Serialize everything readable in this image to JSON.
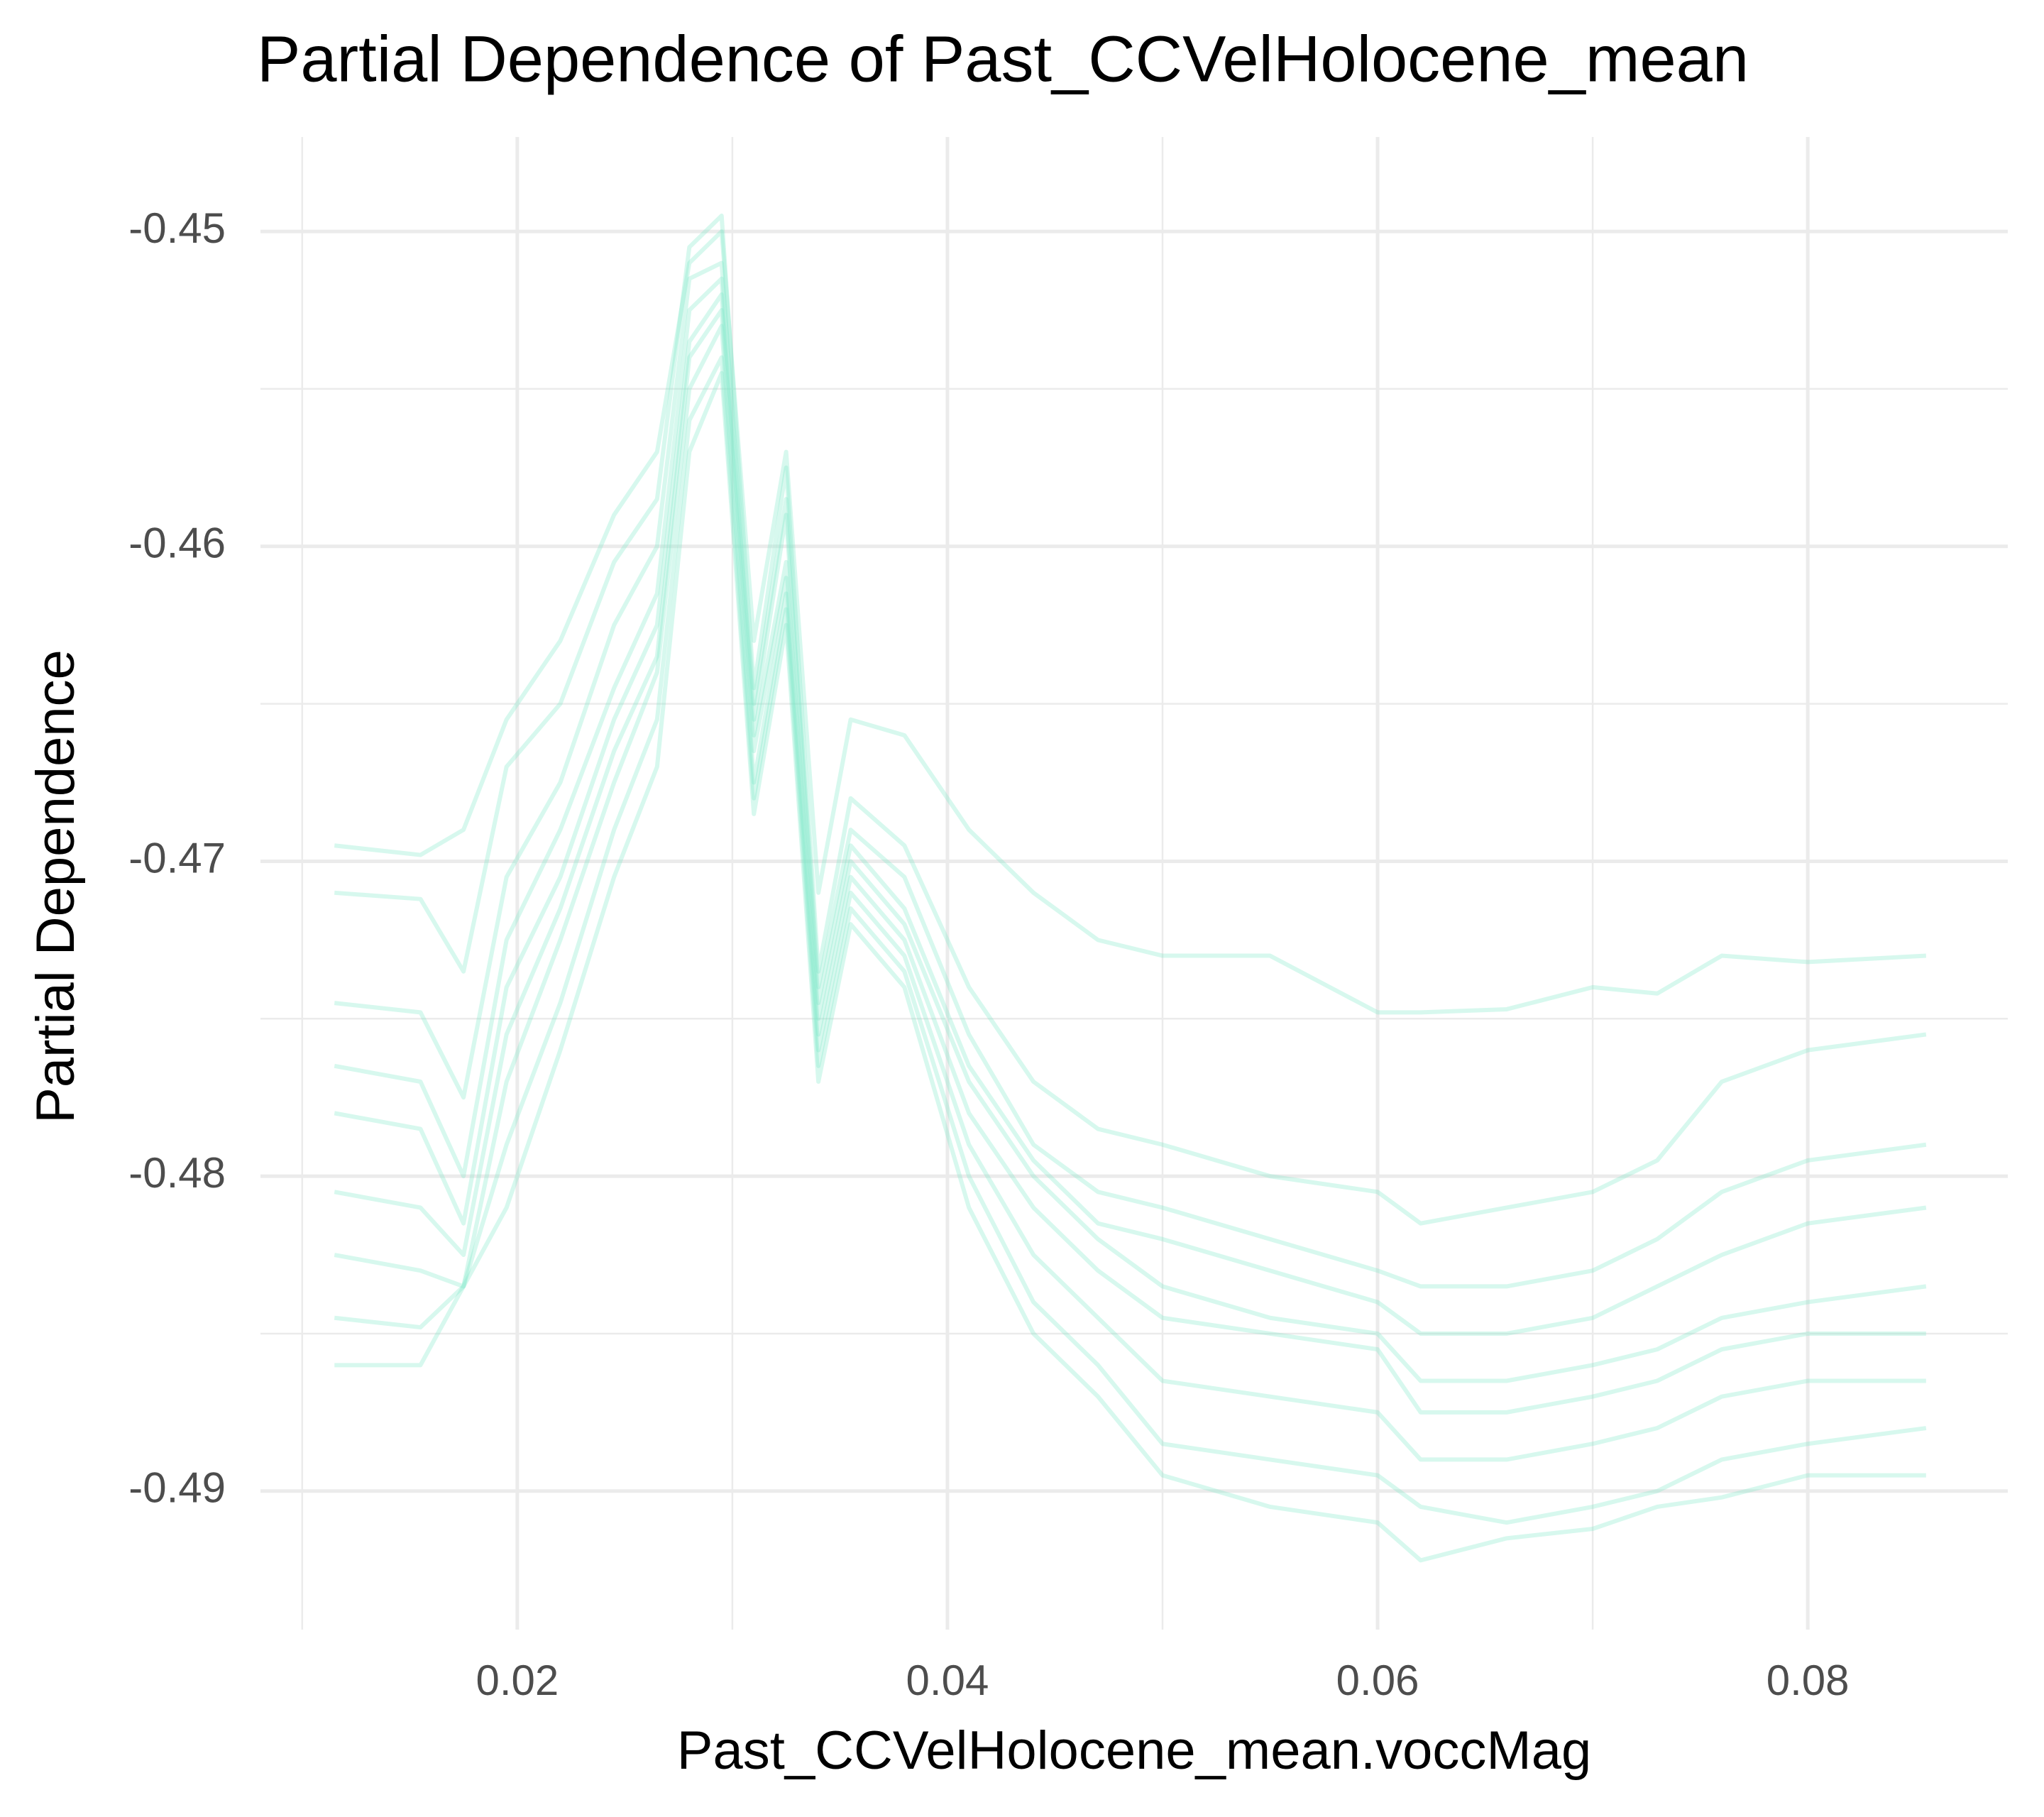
{
  "chart_data": {
    "type": "line",
    "title": "Partial Dependence of Past_CCVelHolocene_mean",
    "x_label": "Past_CCVelHolocene_mean.voccMag",
    "y_label": "Partial Dependence",
    "x": [
      0.0115,
      0.0155,
      0.0175,
      0.0195,
      0.022,
      0.0245,
      0.0265,
      0.028,
      0.0295,
      0.031,
      0.0325,
      0.034,
      0.0355,
      0.038,
      0.041,
      0.044,
      0.047,
      0.05,
      0.055,
      0.06,
      0.062,
      0.066,
      0.07,
      0.073,
      0.076,
      0.08,
      0.0855
    ],
    "series": [
      {
        "color": "#7ae8c7",
        "values": [
          -0.4695,
          -0.4698,
          -0.469,
          -0.4655,
          -0.463,
          -0.459,
          -0.457,
          -0.451,
          -0.45,
          -0.463,
          -0.457,
          -0.471,
          -0.4655,
          -0.466,
          -0.469,
          -0.471,
          -0.4725,
          -0.473,
          -0.473,
          -0.4748,
          -0.4748,
          -0.4747,
          -0.474,
          -0.4742,
          -0.473,
          -0.4732,
          -0.473
        ]
      },
      {
        "color": "#7ae8c7",
        "values": [
          -0.471,
          -0.4712,
          -0.4735,
          -0.467,
          -0.465,
          -0.4605,
          -0.4585,
          -0.4505,
          -0.4495,
          -0.4645,
          -0.4575,
          -0.4735,
          -0.468,
          -0.4695,
          -0.474,
          -0.477,
          -0.4785,
          -0.479,
          -0.48,
          -0.4805,
          -0.4815,
          -0.481,
          -0.4805,
          -0.4795,
          -0.477,
          -0.476,
          -0.4755
        ]
      },
      {
        "color": "#7ae8c7",
        "values": [
          -0.4745,
          -0.4748,
          -0.4775,
          -0.4705,
          -0.4675,
          -0.4625,
          -0.46,
          -0.4515,
          -0.451,
          -0.465,
          -0.4585,
          -0.474,
          -0.469,
          -0.4705,
          -0.4755,
          -0.479,
          -0.4805,
          -0.481,
          -0.482,
          -0.483,
          -0.4835,
          -0.4835,
          -0.483,
          -0.482,
          -0.4805,
          -0.4795,
          -0.479
        ]
      },
      {
        "color": "#7ae8c7",
        "values": [
          -0.4765,
          -0.477,
          -0.48,
          -0.4725,
          -0.469,
          -0.4645,
          -0.4615,
          -0.4525,
          -0.4515,
          -0.4655,
          -0.459,
          -0.4745,
          -0.4695,
          -0.4715,
          -0.4765,
          -0.4795,
          -0.4815,
          -0.482,
          -0.483,
          -0.484,
          -0.485,
          -0.485,
          -0.4845,
          -0.4835,
          -0.4825,
          -0.4815,
          -0.481
        ]
      },
      {
        "color": "#7ae8c7",
        "values": [
          -0.478,
          -0.4785,
          -0.4815,
          -0.474,
          -0.4705,
          -0.4655,
          -0.4625,
          -0.4535,
          -0.452,
          -0.466,
          -0.4605,
          -0.475,
          -0.47,
          -0.472,
          -0.477,
          -0.48,
          -0.482,
          -0.4835,
          -0.4845,
          -0.485,
          -0.4865,
          -0.4865,
          -0.486,
          -0.4855,
          -0.4845,
          -0.484,
          -0.4835
        ]
      },
      {
        "color": "#7ae8c7",
        "values": [
          -0.4805,
          -0.481,
          -0.4825,
          -0.4755,
          -0.4715,
          -0.4665,
          -0.4635,
          -0.454,
          -0.4525,
          -0.4665,
          -0.461,
          -0.4755,
          -0.4705,
          -0.4725,
          -0.478,
          -0.481,
          -0.483,
          -0.4845,
          -0.485,
          -0.4855,
          -0.4875,
          -0.4875,
          -0.487,
          -0.4865,
          -0.4855,
          -0.485,
          -0.485
        ]
      },
      {
        "color": "#7ae8c7",
        "values": [
          -0.4825,
          -0.483,
          -0.4835,
          -0.477,
          -0.4725,
          -0.4675,
          -0.464,
          -0.455,
          -0.453,
          -0.4675,
          -0.4615,
          -0.476,
          -0.471,
          -0.473,
          -0.479,
          -0.4825,
          -0.4845,
          -0.4865,
          -0.487,
          -0.4875,
          -0.489,
          -0.489,
          -0.4885,
          -0.488,
          -0.487,
          -0.4865,
          -0.4865
        ]
      },
      {
        "color": "#7ae8c7",
        "values": [
          -0.4845,
          -0.4848,
          -0.4835,
          -0.479,
          -0.4745,
          -0.469,
          -0.4655,
          -0.456,
          -0.454,
          -0.468,
          -0.462,
          -0.4765,
          -0.4715,
          -0.4735,
          -0.48,
          -0.484,
          -0.486,
          -0.4885,
          -0.489,
          -0.4895,
          -0.4905,
          -0.491,
          -0.4905,
          -0.49,
          -0.489,
          -0.4885,
          -0.488
        ]
      },
      {
        "color": "#7ae8c7",
        "values": [
          -0.486,
          -0.486,
          -0.4835,
          -0.481,
          -0.476,
          -0.4705,
          -0.467,
          -0.457,
          -0.4545,
          -0.4685,
          -0.4625,
          -0.477,
          -0.472,
          -0.474,
          -0.481,
          -0.485,
          -0.487,
          -0.4895,
          -0.4905,
          -0.491,
          -0.4922,
          -0.4915,
          -0.4912,
          -0.4905,
          -0.4902,
          -0.4895,
          -0.4895
        ]
      }
    ],
    "line_opacity": 0.3,
    "xlim": [
      0.00806,
      0.0893
    ],
    "ylim": [
      -0.4944,
      -0.447
    ],
    "xticks": [
      0.02,
      0.04,
      0.06,
      0.08
    ],
    "yticks": [
      -0.45,
      -0.46,
      -0.47,
      -0.48,
      -0.49
    ],
    "xminor": [
      0.01,
      0.03,
      0.05,
      0.07
    ],
    "yminor": [
      -0.455,
      -0.465,
      -0.475,
      -0.485
    ],
    "grid": true
  }
}
